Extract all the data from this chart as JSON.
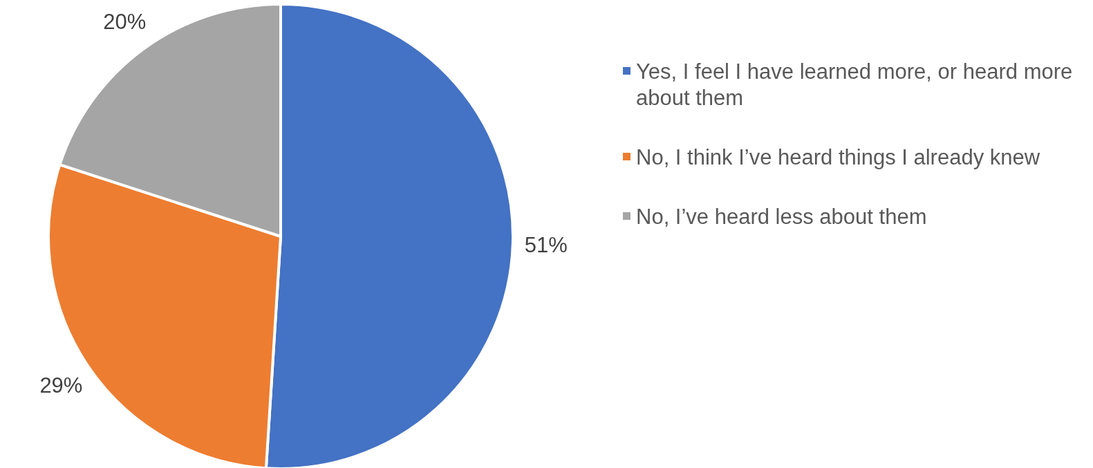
{
  "chart_data": {
    "type": "pie",
    "categories": [
      "Yes, I feel I have learned more, or heard more about them",
      "No, I think I’ve heard things I already knew",
      "No, I’ve heard less about them"
    ],
    "values": [
      51,
      29,
      20
    ],
    "colors": [
      "#4472c4",
      "#ed7d31",
      "#a5a5a5"
    ],
    "value_labels": [
      "51%",
      "29%",
      "20%"
    ],
    "legend": "right"
  }
}
